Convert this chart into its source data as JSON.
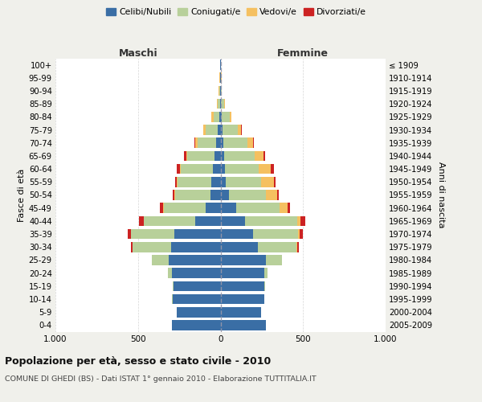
{
  "age_groups_bottom_to_top": [
    "0-4",
    "5-9",
    "10-14",
    "15-19",
    "20-24",
    "25-29",
    "30-34",
    "35-39",
    "40-44",
    "45-49",
    "50-54",
    "55-59",
    "60-64",
    "65-69",
    "70-74",
    "75-79",
    "80-84",
    "85-89",
    "90-94",
    "95-99",
    "100+"
  ],
  "birth_years_bottom_to_top": [
    "2005-2009",
    "2000-2004",
    "1995-1999",
    "1990-1994",
    "1985-1989",
    "1980-1984",
    "1975-1979",
    "1970-1974",
    "1965-1969",
    "1960-1964",
    "1955-1959",
    "1950-1954",
    "1945-1949",
    "1940-1944",
    "1935-1939",
    "1930-1934",
    "1925-1929",
    "1920-1924",
    "1915-1919",
    "1910-1914",
    "≤ 1909"
  ],
  "males_celibi": [
    295,
    265,
    290,
    285,
    295,
    315,
    300,
    280,
    155,
    90,
    60,
    55,
    45,
    35,
    25,
    15,
    5,
    3,
    2,
    1,
    1
  ],
  "males_coniugati": [
    0,
    0,
    2,
    5,
    25,
    100,
    235,
    265,
    310,
    255,
    215,
    205,
    195,
    165,
    115,
    75,
    38,
    12,
    4,
    2,
    1
  ],
  "males_vedovi": [
    0,
    0,
    0,
    0,
    0,
    0,
    0,
    0,
    1,
    2,
    3,
    4,
    5,
    7,
    13,
    14,
    12,
    8,
    4,
    2,
    1
  ],
  "males_divorziati": [
    0,
    0,
    0,
    0,
    0,
    2,
    8,
    18,
    30,
    18,
    12,
    10,
    22,
    12,
    5,
    3,
    2,
    1,
    0,
    0,
    0
  ],
  "females_nubili": [
    275,
    248,
    265,
    265,
    265,
    275,
    225,
    195,
    148,
    95,
    52,
    32,
    28,
    22,
    16,
    10,
    6,
    4,
    2,
    2,
    1
  ],
  "females_coniugate": [
    0,
    0,
    1,
    3,
    18,
    95,
    235,
    275,
    315,
    265,
    225,
    215,
    205,
    185,
    145,
    95,
    50,
    17,
    4,
    2,
    1
  ],
  "females_vedove": [
    0,
    0,
    0,
    0,
    0,
    2,
    5,
    10,
    20,
    45,
    65,
    75,
    70,
    55,
    35,
    20,
    10,
    5,
    2,
    1,
    0
  ],
  "females_divorziate": [
    0,
    0,
    0,
    0,
    0,
    2,
    8,
    18,
    30,
    18,
    12,
    10,
    22,
    8,
    5,
    3,
    2,
    1,
    0,
    0,
    0
  ],
  "colors": {
    "celibi": "#3a6ea5",
    "coniugati": "#b8d09a",
    "vedovi": "#f5c060",
    "divorziati": "#cc2222"
  },
  "xlim": 1000,
  "title": "Popolazione per età, sesso e stato civile - 2010",
  "subtitle": "COMUNE DI GHEDI (BS) - Dati ISTAT 1° gennaio 2010 - Elaborazione TUTTITALIA.IT",
  "ylabel_left": "Fasce di età",
  "ylabel_right": "Anni di nascita",
  "bg_color": "#f0f0eb",
  "plot_bg": "#ffffff"
}
